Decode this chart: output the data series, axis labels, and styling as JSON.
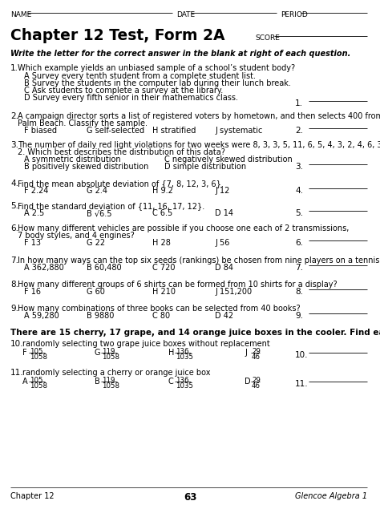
{
  "title": "Chapter 12 Test, Form 2A",
  "score_label": "SCORE",
  "name_label": "NAME",
  "date_label": "DATE",
  "period_label": "PERIOD",
  "instruction": "Write the letter for the correct answer in the blank at right of each question.",
  "footer_left": "Chapter 12",
  "footer_center": "63",
  "footer_right": "Glencoe Algebra 1",
  "bg_color": "#ffffff",
  "text_color": "#000000"
}
